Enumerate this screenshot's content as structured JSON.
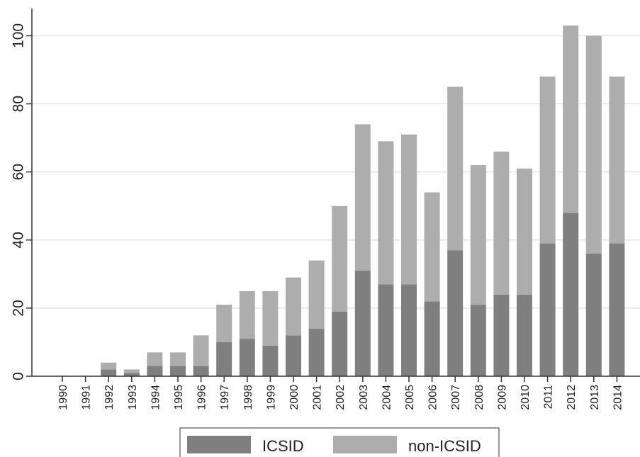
{
  "chart_data": {
    "type": "bar",
    "stacked": true,
    "categories": [
      "1990",
      "1991",
      "1992",
      "1993",
      "1994",
      "1995",
      "1996",
      "1997",
      "1998",
      "1999",
      "2000",
      "2001",
      "2002",
      "2003",
      "2004",
      "2005",
      "2006",
      "2007",
      "2008",
      "2009",
      "2010",
      "2011",
      "2012",
      "2013",
      "2014"
    ],
    "series": [
      {
        "name": "ICSID",
        "color": "#7f7f7f",
        "values": [
          0,
          0,
          2,
          1,
          3,
          3,
          3,
          10,
          11,
          9,
          12,
          14,
          19,
          31,
          27,
          27,
          22,
          37,
          21,
          24,
          24,
          39,
          48,
          36,
          39
        ]
      },
      {
        "name": "non-ICSID",
        "color": "#adadad",
        "values": [
          0,
          0,
          2,
          1,
          4,
          4,
          9,
          11,
          14,
          16,
          17,
          20,
          31,
          43,
          42,
          44,
          32,
          48,
          41,
          42,
          37,
          49,
          55,
          64,
          49
        ]
      }
    ],
    "ylim": [
      0,
      108
    ],
    "yticks": [
      0,
      20,
      40,
      60,
      80,
      100
    ],
    "grid": true,
    "legend_position": "bottom",
    "title": "",
    "xlabel": "",
    "ylabel": ""
  }
}
